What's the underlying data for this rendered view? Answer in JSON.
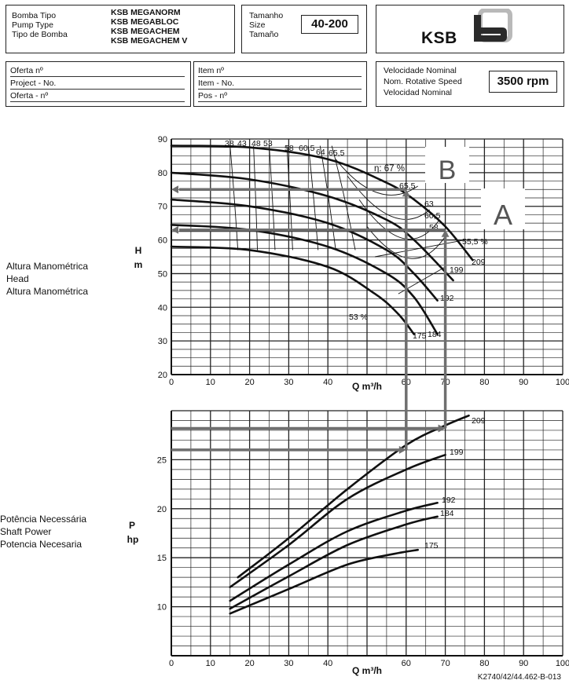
{
  "header": {
    "pump": {
      "labels": [
        "Bomba Tipo",
        "Pump Type",
        "Tipo de Bomba"
      ],
      "models": [
        "KSB MEGANORM",
        "KSB MEGABLOC",
        "KSB MEGACHEM",
        "KSB MEGACHEM V"
      ]
    },
    "size": {
      "labels": [
        "Tamanho",
        "Size",
        "Tamaño"
      ],
      "value": "40-200"
    },
    "logo": {
      "text": "KSB"
    },
    "offer": {
      "labels": [
        "Oferta nº",
        "Project - No.",
        "Oferta - nº"
      ]
    },
    "item": {
      "labels": [
        "Item nº",
        "Item - No.",
        "Pos - nº"
      ]
    },
    "speed": {
      "labels": [
        "Velocidade Nominal",
        "Nom. Rotative Speed",
        "Velocidad Nominal"
      ],
      "value": "3500 rpm"
    }
  },
  "side_labels": {
    "head": [
      "Altura Manométrica",
      "Head",
      "Altura Manométrica"
    ],
    "head_unit": [
      "H",
      "m"
    ],
    "power": [
      "Potência Necessária",
      "Shaft Power",
      "Potencia Necesaria"
    ],
    "power_unit": [
      "P",
      "hp"
    ]
  },
  "footer": {
    "code": "K2740/42/44.462-B-013"
  },
  "chart_data": [
    {
      "type": "line",
      "xlabel": "Q m³/h",
      "ylabel": "H m",
      "xlim": [
        0,
        100
      ],
      "ylim": [
        20,
        90
      ],
      "xticks": [
        0,
        10,
        20,
        30,
        40,
        60,
        70,
        80,
        90,
        100
      ],
      "yticks": [
        20,
        30,
        40,
        50,
        60,
        70,
        80,
        90
      ],
      "grid": true,
      "series": [
        {
          "name": "209",
          "x": [
            0,
            20,
            40,
            55,
            62,
            70,
            77
          ],
          "y": [
            88,
            87.5,
            84,
            77,
            72,
            64,
            54
          ]
        },
        {
          "name": "199",
          "x": [
            0,
            20,
            40,
            55,
            62,
            72
          ],
          "y": [
            80,
            78,
            73,
            66,
            60,
            48
          ]
        },
        {
          "name": "192",
          "x": [
            0,
            20,
            40,
            55,
            62,
            68
          ],
          "y": [
            72,
            70,
            65,
            57,
            50,
            42
          ]
        },
        {
          "name": "184",
          "x": [
            0,
            20,
            40,
            55,
            62,
            68
          ],
          "y": [
            64.5,
            63,
            58,
            50,
            43,
            32
          ]
        },
        {
          "name": "175",
          "x": [
            0,
            20,
            40,
            52,
            58,
            62
          ],
          "y": [
            58,
            57,
            52,
            44,
            38,
            32
          ]
        }
      ],
      "curve_labels": [
        "209",
        "199",
        "192",
        "184",
        "175"
      ],
      "efficiency_labels": [
        "38",
        "43",
        "48",
        "53",
        "58",
        "60,5",
        "64",
        "65,5",
        "η: 67 %",
        "65,5",
        "63",
        "60,5",
        "58",
        "55,5 %",
        "53 %"
      ],
      "annotations": [
        "B",
        "A"
      ],
      "guides": [
        {
          "label": "B",
          "q": 60,
          "h": 75
        },
        {
          "label": "A",
          "q": 70,
          "h": 63
        }
      ]
    },
    {
      "type": "line",
      "xlabel": "Q m³/h",
      "ylabel": "P hp",
      "xlim": [
        0,
        100
      ],
      "ylim": [
        5,
        30
      ],
      "xticks": [
        0,
        10,
        20,
        30,
        40,
        60,
        70,
        80,
        90,
        100
      ],
      "yticks": [
        10,
        15,
        20,
        25
      ],
      "grid": true,
      "series": [
        {
          "name": "209",
          "x": [
            17,
            30,
            45,
            60,
            70,
            76
          ],
          "y": [
            13,
            17,
            22,
            26.5,
            28.5,
            29.5
          ]
        },
        {
          "name": "199",
          "x": [
            15,
            30,
            45,
            60,
            70
          ],
          "y": [
            12,
            16.3,
            21,
            24,
            25.5
          ]
        },
        {
          "name": "192",
          "x": [
            15,
            30,
            45,
            60,
            68
          ],
          "y": [
            10.6,
            14.3,
            17.7,
            19.8,
            20.6
          ]
        },
        {
          "name": "184",
          "x": [
            15,
            30,
            45,
            60,
            68
          ],
          "y": [
            9.8,
            13.1,
            16.3,
            18.4,
            19.2
          ]
        },
        {
          "name": "175",
          "x": [
            15,
            30,
            45,
            57,
            63
          ],
          "y": [
            9.3,
            11.8,
            14.3,
            15.4,
            15.8
          ]
        }
      ],
      "curve_labels": [
        "209",
        "199",
        "192",
        "184",
        "175"
      ],
      "guides": [
        {
          "label": "B",
          "q": 60,
          "p": 26
        },
        {
          "label": "A",
          "q": 70,
          "p": 28.2
        }
      ]
    }
  ]
}
